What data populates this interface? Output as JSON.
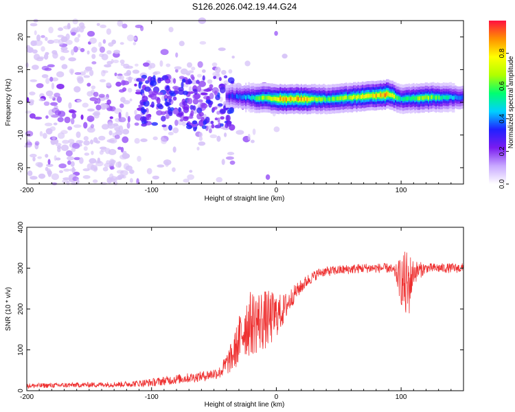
{
  "title": "S126.2026.042.19.44.G24",
  "colors": {
    "snr_line": "#ee3030",
    "spec_purple": "#7a1cf0",
    "spec_light": "#d7c3f8"
  },
  "chart_data": [
    {
      "type": "heatmap",
      "title": "",
      "xlabel": "Height of straight line (km)",
      "ylabel": "Frequency (Hz)",
      "xlim": [
        -200,
        150
      ],
      "ylim": [
        -25,
        25
      ],
      "xticks": [
        -200,
        -100,
        0,
        100
      ],
      "yticks": [
        -20,
        -10,
        0,
        10,
        20
      ],
      "colorbar": {
        "label": "Normalized spectral amplitude",
        "range": [
          0,
          1
        ],
        "ticks": [
          0,
          0.2,
          0.4,
          0.6,
          0.8
        ],
        "tick_labels": [
          "0.0",
          "0.2",
          "0.4",
          "0.6",
          "0.8"
        ],
        "colormap": [
          "#ffffff",
          "#c8a8ff",
          "#7a1cf0",
          "#2020ff",
          "#00d0ff",
          "#00ff70",
          "#b0ff00",
          "#ffff00",
          "#ff9000",
          "#ff1040"
        ]
      },
      "ridge": {
        "description_points_height_km": [
          -40,
          -20,
          0,
          20,
          40,
          60,
          80,
          90,
          100,
          120,
          150
        ],
        "frequency_hz": [
          2,
          1.5,
          1,
          1,
          1,
          1.5,
          2,
          2.5,
          1,
          1.5,
          1.5
        ],
        "peak_amplitude": [
          0.3,
          0.5,
          0.85,
          0.9,
          0.6,
          0.7,
          0.85,
          0.9,
          0.5,
          0.7,
          0.4
        ]
      },
      "noise_region_km": [
        -200,
        -30
      ]
    },
    {
      "type": "line",
      "title": "",
      "xlabel": "Height of straight line (km)",
      "ylabel": "SNR (10 * v/v)",
      "xlim": [
        -200,
        150
      ],
      "ylim": [
        0,
        400
      ],
      "xticks": [
        -200,
        -100,
        0,
        100
      ],
      "yticks": [
        0,
        100,
        200,
        300,
        400
      ],
      "series": [
        {
          "name": "SNR",
          "x": [
            -200,
            -160,
            -120,
            -100,
            -80,
            -60,
            -45,
            -35,
            -25,
            -15,
            -5,
            5,
            15,
            25,
            35,
            50,
            70,
            90,
            95,
            100,
            105,
            110,
            120,
            150
          ],
          "y": [
            12,
            14,
            16,
            20,
            28,
            35,
            45,
            85,
            160,
            170,
            175,
            195,
            240,
            270,
            290,
            295,
            300,
            300,
            290,
            270,
            250,
            290,
            300,
            300
          ],
          "noise_amplitude": [
            6,
            6,
            7,
            10,
            12,
            12,
            15,
            40,
            80,
            80,
            70,
            40,
            20,
            15,
            12,
            12,
            12,
            12,
            15,
            60,
            100,
            30,
            12,
            12
          ]
        }
      ]
    }
  ]
}
